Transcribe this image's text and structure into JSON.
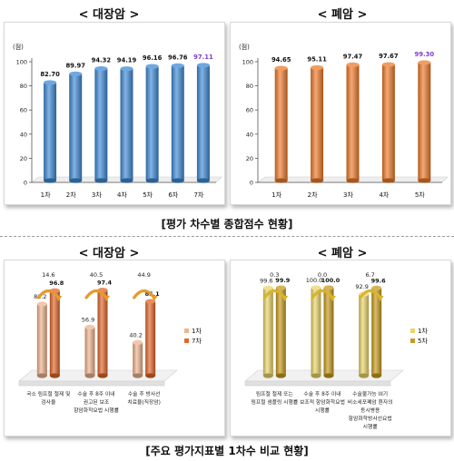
{
  "top_headers": [
    "< 대장암 >",
    "< 폐암 >"
  ],
  "bottom_headers": [
    "< 대장암 >",
    "< 폐암 >"
  ],
  "caption_top": "[평가 차수별 종합점수 현황]",
  "caption_bottom": "[주요 평가지표별 1차수 비교 현황]",
  "colors": {
    "blue": "#3f8bd6",
    "orange": "#ee7b2a",
    "salmon_first": "#efb48e",
    "orange_last": "#e2672a",
    "gold_first": "#ead56a",
    "gold_last": "#c99a1c",
    "arrow_orange": "#e69a2e",
    "arrow_gold": "#d7b52c",
    "highlight_purple": "#7d3ccf"
  },
  "chart_data": [
    {
      "type": "bar",
      "unit": "(점)",
      "categories": [
        "1차",
        "2차",
        "3차",
        "4차",
        "5차",
        "6차",
        "7차"
      ],
      "values": [
        82.7,
        89.97,
        94.32,
        94.19,
        96.16,
        96.76,
        97.11
      ],
      "value_labels": [
        "82.70",
        "89.97",
        "94.32",
        "94.19",
        "96.16",
        "96.76",
        "97.11"
      ],
      "yticks": [
        "0",
        "20",
        "40",
        "60",
        "80",
        "100"
      ],
      "ylim": [
        0,
        100
      ],
      "highlight_last": true
    },
    {
      "type": "bar",
      "unit": "(점)",
      "categories": [
        "1차",
        "2차",
        "3차",
        "4차",
        "5차"
      ],
      "values": [
        94.65,
        95.11,
        97.47,
        97.67,
        99.3
      ],
      "value_labels": [
        "94.65",
        "95.11",
        "97.47",
        "97.67",
        "99.30"
      ],
      "yticks": [
        "0",
        "20",
        "40",
        "60",
        "80",
        "100"
      ],
      "ylim": [
        0,
        100
      ],
      "highlight_last": true
    },
    {
      "type": "bar",
      "categories": [
        [
          "국소 림프절 절제 및",
          "검사율"
        ],
        [
          "수술 후 8주 이내",
          "권고된 보조",
          "항암화학요법 시행률"
        ],
        [
          "수술 후 방사선",
          "치료율(직장암)"
        ]
      ],
      "series": [
        {
          "name": "1차",
          "values": [
            82.2,
            56.9,
            40.2
          ],
          "labels": [
            "82.2",
            "56.9",
            "40.2"
          ]
        },
        {
          "name": "7차",
          "values": [
            96.8,
            97.4,
            85.1
          ],
          "labels": [
            "96.8",
            "97.4",
            "85.1"
          ]
        }
      ],
      "differences": [
        "14.6",
        "40.5",
        "44.9"
      ],
      "ylim": [
        0,
        100
      ]
    },
    {
      "type": "bar",
      "categories": [
        [
          "림프절 절제 또는",
          "림프절 샘플링 시행률"
        ],
        [
          "수술 후 8주 이내",
          "보조적 항암화학요법",
          "시행률"
        ],
        [
          "수술불가능 III기",
          "비소세포폐암 환자의",
          "동시병용",
          "항암화학방사선요법",
          "시행률"
        ]
      ],
      "series": [
        {
          "name": "1차",
          "values": [
            99.6,
            100.0,
            92.9
          ],
          "labels": [
            "99.6",
            "100.0",
            "92.9"
          ]
        },
        {
          "name": "5차",
          "values": [
            99.9,
            100.0,
            99.6
          ],
          "labels": [
            "99.9",
            "100.0",
            "99.6"
          ]
        }
      ],
      "differences": [
        "0.3",
        "0.0",
        "6.7"
      ],
      "ylim": [
        0,
        100
      ]
    }
  ]
}
